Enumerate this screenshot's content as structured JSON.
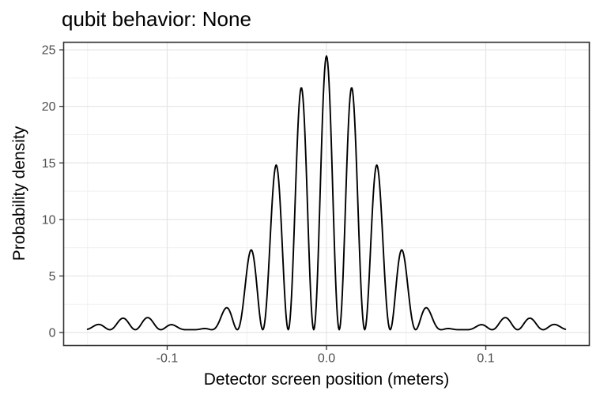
{
  "window": {
    "background_color": "#ffffff"
  },
  "chart_data": {
    "type": "line",
    "title": "qubit behavior: None",
    "xlabel": "Detector screen position (meters)",
    "ylabel": "Probability density",
    "legend": "none",
    "grid": "major and minor, light gray on white panel, black panel border (ggplot theme_bw style)",
    "xlim": [
      -0.165,
      0.165
    ],
    "ylim": [
      -1.15,
      25.67
    ],
    "x_ticks": [
      {
        "value": -0.1,
        "label": "-0.1"
      },
      {
        "value": 0.0,
        "label": "0.0"
      },
      {
        "value": 0.1,
        "label": "0.1"
      }
    ],
    "x_minor_ticks": [
      -0.15,
      -0.05,
      0.05,
      0.15
    ],
    "y_ticks": [
      {
        "value": 0,
        "label": "0"
      },
      {
        "value": 5,
        "label": "5"
      },
      {
        "value": 10,
        "label": "10"
      },
      {
        "value": 15,
        "label": "15"
      },
      {
        "value": 20,
        "label": "20"
      },
      {
        "value": 25,
        "label": "25"
      }
    ],
    "y_minor_ticks": [
      2.5,
      7.5,
      12.5,
      17.5,
      22.5
    ],
    "style": {
      "line_color": "#000000",
      "grid_major_color": "#e5e5e5",
      "grid_minor_color": "#f0f0f0",
      "panel_border_color": "#333333",
      "tick_label_color": "#4d4d4d",
      "title_color": "#000000"
    },
    "series": [
      {
        "name": "double-slit interference probability density",
        "model": "y = A * cos(pi*x/fringe_spacing)^2 * sinc(pi*x/envelope_zero)^2 + baseline, sinc(u)=sin(u)/u",
        "params": {
          "A": 24.2,
          "fringe_spacing": 0.016,
          "envelope_zero": 0.083,
          "baseline": 0.25
        },
        "x_range": [
          -0.15,
          0.15
        ],
        "samples": 751,
        "peaks": [
          {
            "x": 0.0,
            "y": 24.5
          },
          {
            "x": -0.016,
            "y": 21.5
          },
          {
            "x": 0.016,
            "y": 21.5
          },
          {
            "x": -0.032,
            "y": 14.6
          },
          {
            "x": 0.032,
            "y": 14.6
          },
          {
            "x": -0.048,
            "y": 6.9
          },
          {
            "x": 0.048,
            "y": 6.9
          },
          {
            "x": -0.064,
            "y": 2.1
          },
          {
            "x": 0.064,
            "y": 2.1
          },
          {
            "x": -0.096,
            "y": 0.6
          },
          {
            "x": 0.096,
            "y": 0.6
          },
          {
            "x": -0.112,
            "y": 1.2
          },
          {
            "x": 0.112,
            "y": 1.2
          },
          {
            "x": -0.128,
            "y": 1.2
          },
          {
            "x": 0.128,
            "y": 1.2
          },
          {
            "x": -0.144,
            "y": 0.7
          },
          {
            "x": 0.144,
            "y": 0.7
          }
        ]
      }
    ]
  }
}
